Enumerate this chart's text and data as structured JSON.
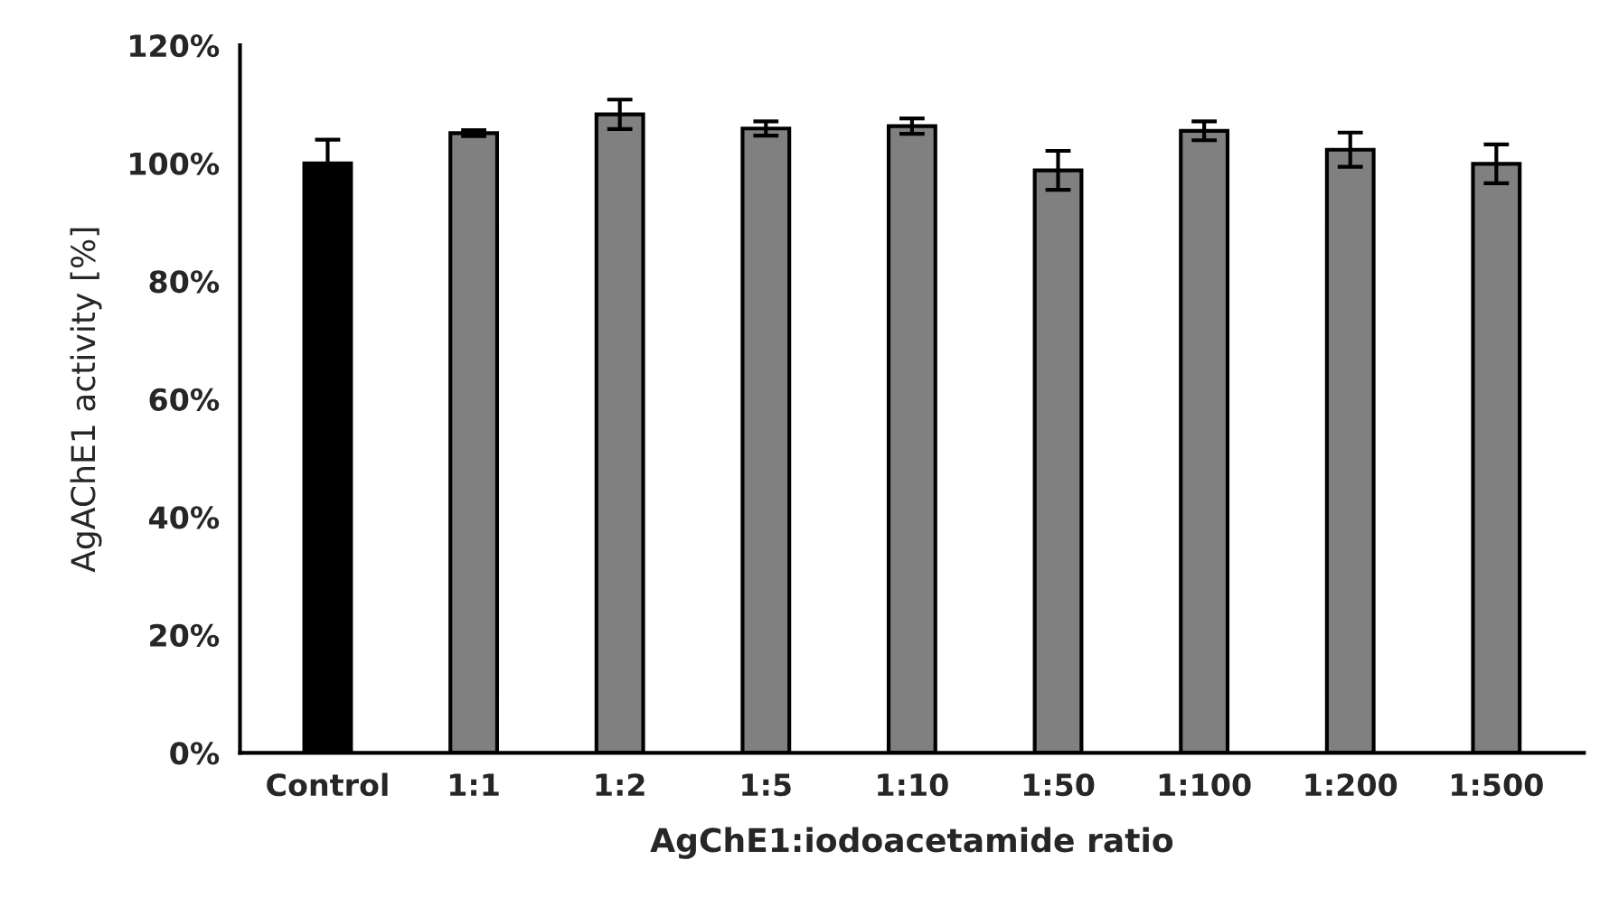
{
  "chart_data": {
    "type": "bar",
    "xlabel": "AgChE1:iodoacetamide ratio",
    "ylabel": "AgAChE1 activity [%]",
    "categories": [
      "Control",
      "1:1",
      "1:2",
      "1:5",
      "1:10",
      "1:50",
      "1:100",
      "1:200",
      "1:500"
    ],
    "values": [
      100,
      105.1,
      108.3,
      105.9,
      106.3,
      98.8,
      105.5,
      102.3,
      99.9
    ],
    "errors": [
      4,
      0.5,
      2.5,
      1.2,
      1.3,
      3.3,
      1.6,
      2.9,
      3.3
    ],
    "colors": [
      "#000000",
      "#808080",
      "#808080",
      "#808080",
      "#808080",
      "#808080",
      "#808080",
      "#808080",
      "#808080"
    ],
    "ylim": [
      0,
      120
    ],
    "yticks": [
      {
        "value": 0,
        "label": "0%"
      },
      {
        "value": 20,
        "label": "20%"
      },
      {
        "value": 40,
        "label": "40%"
      },
      {
        "value": 60,
        "label": "60%"
      },
      {
        "value": 80,
        "label": "80%"
      },
      {
        "value": 100,
        "label": "100%"
      },
      {
        "value": 120,
        "label": "120%"
      }
    ],
    "grid": false,
    "legend": false
  }
}
